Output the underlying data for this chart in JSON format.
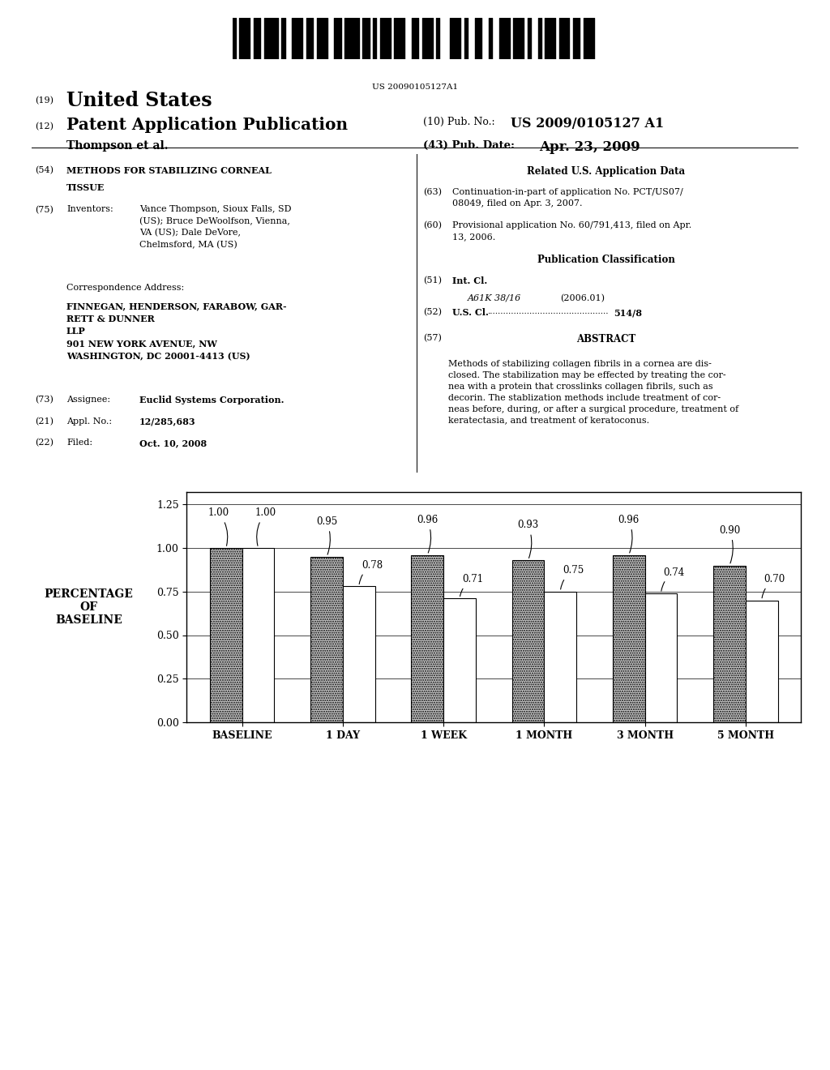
{
  "patent_number": "US 20090105127A1",
  "header": {
    "line1_num": "(19)",
    "line1_text": "United States",
    "line2_num": "(12)",
    "line2_text": "Patent Application Publication",
    "pub_num_label": "(10) Pub. No.:",
    "pub_num_value": "US 2009/0105127 A1",
    "author": "Thompson et al.",
    "date_label": "(43) Pub. Date:",
    "date_value": "Apr. 23, 2009"
  },
  "chart": {
    "categories": [
      "BASELINE",
      "1 DAY",
      "1 WEEK",
      "1 MONTH",
      "3 MONTH",
      "5 MONTH"
    ],
    "bar1_values": [
      1.0,
      0.95,
      0.96,
      0.93,
      0.96,
      0.9
    ],
    "bar2_values": [
      1.0,
      0.78,
      0.71,
      0.75,
      0.74,
      0.7
    ],
    "bar1_labels": [
      "1.00",
      "0.95",
      "0.96",
      "0.93",
      "0.96",
      "0.90"
    ],
    "bar2_labels": [
      "1.00",
      "0.78",
      "0.71",
      "0.75",
      "0.74",
      "0.70"
    ],
    "ylabel": "PERCENTAGE\nOF\nBASELINE",
    "yticks": [
      0.0,
      0.25,
      0.5,
      0.75,
      1.0,
      1.25
    ],
    "ytick_labels": [
      "0.00",
      "0.25",
      "0.50",
      "0.75",
      "1.00",
      "1.25"
    ],
    "ylim_max": 1.32,
    "bar1_color": "#c8c8c8",
    "bar2_color": "#ffffff",
    "bar_width": 0.32
  }
}
